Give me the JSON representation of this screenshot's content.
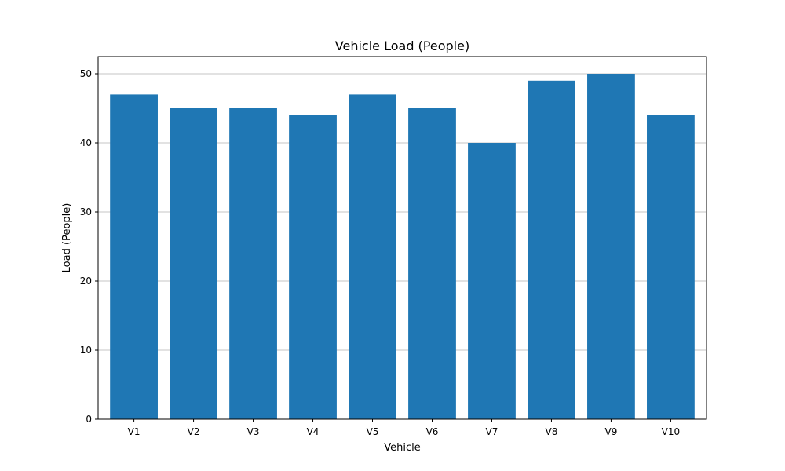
{
  "chart_data": {
    "type": "bar",
    "title": "Vehicle Load (People)",
    "xlabel": "Vehicle",
    "ylabel": "Load (People)",
    "categories": [
      "V1",
      "V2",
      "V3",
      "V4",
      "V5",
      "V6",
      "V7",
      "V8",
      "V9",
      "V10"
    ],
    "values": [
      47,
      45,
      45,
      44,
      47,
      45,
      40,
      49,
      50,
      44
    ],
    "ylim": [
      0,
      52.5
    ],
    "yticks": [
      0,
      10,
      20,
      30,
      40,
      50
    ],
    "grid": "y",
    "legend": "none",
    "colors": {
      "bar": "#1f77b4",
      "grid": "#b0b0b0",
      "axis": "#000000"
    }
  }
}
